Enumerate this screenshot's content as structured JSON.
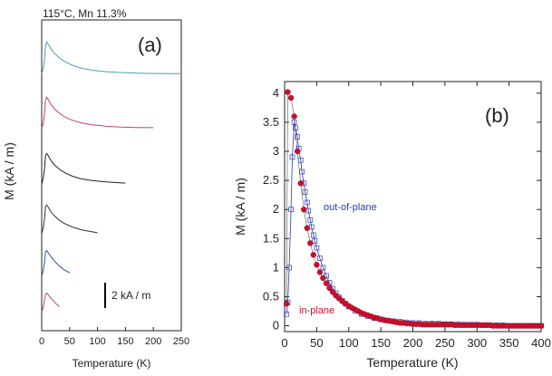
{
  "colors": {
    "axis": "#222222",
    "trace_a1": "#4aa0b5",
    "trace_a2": "#c0407a",
    "trace_a3": "#222222",
    "trace_a4": "#333333",
    "trace_a5": "#3355aa",
    "trace_a6": "#c0407a",
    "in_plane": "#c8102e",
    "out_of_plane": "#2d3bb0"
  },
  "chart_data": [
    {
      "panel": "a",
      "type": "line",
      "title": "115°C, Mn 11.3%",
      "panel_label": "(a)",
      "xlabel": "Temperature (K)",
      "ylabel": "M (kA / m)",
      "xlim": [
        0,
        250
      ],
      "x_ticks": [
        "0",
        "50",
        "100",
        "150",
        "200",
        "250"
      ],
      "scale_bar": {
        "label": "2 kA / m",
        "value": 2
      },
      "series": [
        {
          "x": [
            0,
            3,
            5,
            7,
            9,
            12,
            16,
            22,
            30,
            40,
            55,
            70,
            90,
            115,
            140,
            170,
            200,
            230,
            250
          ],
          "y": [
            0.0,
            0.3,
            0.75,
            1.4,
            1.6,
            1.48,
            1.28,
            1.06,
            0.85,
            0.65,
            0.44,
            0.31,
            0.2,
            0.13,
            0.09,
            0.06,
            0.04,
            0.03,
            0.03
          ]
        },
        {
          "x": [
            0,
            3,
            5,
            7,
            9,
            12,
            16,
            22,
            30,
            40,
            55,
            70,
            90,
            115,
            140,
            170,
            200
          ],
          "y": [
            0.0,
            0.3,
            0.75,
            1.4,
            1.55,
            1.43,
            1.22,
            1.0,
            0.8,
            0.6,
            0.41,
            0.29,
            0.19,
            0.12,
            0.08,
            0.06,
            0.05
          ]
        },
        {
          "x": [
            0,
            3,
            5,
            7,
            9,
            12,
            16,
            22,
            30,
            40,
            55,
            70,
            90,
            115,
            150
          ],
          "y": [
            0.0,
            0.3,
            0.75,
            1.4,
            1.5,
            1.38,
            1.18,
            0.96,
            0.76,
            0.57,
            0.38,
            0.26,
            0.17,
            0.1,
            0.04
          ]
        },
        {
          "x": [
            0,
            3,
            5,
            7,
            9,
            12,
            16,
            22,
            30,
            40,
            55,
            70,
            85,
            100
          ],
          "y": [
            0.0,
            0.3,
            0.75,
            1.35,
            1.42,
            1.3,
            1.1,
            0.9,
            0.7,
            0.52,
            0.33,
            0.2,
            0.12,
            0.05
          ]
        },
        {
          "x": [
            0,
            3,
            5,
            7,
            9,
            12,
            16,
            22,
            30,
            40,
            50
          ],
          "y": [
            0.0,
            0.3,
            0.7,
            1.2,
            1.27,
            1.15,
            0.98,
            0.78,
            0.55,
            0.32,
            0.18
          ]
        },
        {
          "x": [
            0,
            3,
            5,
            7,
            9,
            12,
            16,
            22,
            27,
            32
          ],
          "y": [
            0.0,
            0.3,
            0.6,
            0.9,
            0.96,
            0.87,
            0.72,
            0.55,
            0.4,
            0.3
          ]
        }
      ]
    },
    {
      "panel": "b",
      "type": "scatter",
      "panel_label": "(b)",
      "xlabel": "Temperature (K)",
      "ylabel": "M (kA / m)",
      "xlim": [
        0,
        400
      ],
      "ylim": [
        -0.1,
        4.2
      ],
      "x_ticks": [
        "0",
        "50",
        "100",
        "150",
        "200",
        "250",
        "300",
        "350",
        "400"
      ],
      "y_ticks": [
        "0",
        "0.5",
        "1",
        "1.5",
        "2",
        "2.5",
        "3",
        "3.5",
        "4"
      ],
      "series": [
        {
          "name": "in-plane",
          "x": [
            3,
            5,
            10,
            15,
            20,
            25,
            30,
            35,
            40,
            45,
            50,
            55,
            60,
            65,
            70,
            75,
            80,
            85,
            90,
            95,
            100,
            105,
            110,
            115,
            120,
            125,
            130,
            135,
            140,
            145,
            150,
            155,
            160,
            165,
            170,
            175,
            180,
            185,
            190,
            195,
            200,
            205,
            210,
            215,
            220,
            225,
            230,
            235,
            240,
            245,
            250,
            255,
            260,
            265,
            270,
            275,
            280,
            285,
            290,
            295,
            300,
            305,
            310,
            315,
            320,
            325,
            330,
            335,
            340,
            345,
            350,
            355,
            360,
            365,
            370,
            375,
            380,
            385,
            390,
            395,
            400
          ],
          "y": [
            0.38,
            4.02,
            3.92,
            3.6,
            3.0,
            2.45,
            2.0,
            1.68,
            1.42,
            1.22,
            1.05,
            0.92,
            0.82,
            0.73,
            0.65,
            0.58,
            0.52,
            0.47,
            0.42,
            0.38,
            0.34,
            0.31,
            0.28,
            0.25,
            0.22,
            0.2,
            0.18,
            0.16,
            0.14,
            0.13,
            0.11,
            0.1,
            0.09,
            0.08,
            0.07,
            0.06,
            0.05,
            0.05,
            0.04,
            0.04,
            0.03,
            0.03,
            0.03,
            0.02,
            0.02,
            0.02,
            0.02,
            0.02,
            0.02,
            0.02,
            0.02,
            0.02,
            0.02,
            0.01,
            0.01,
            0.01,
            0.01,
            0.01,
            0.01,
            0.01,
            0.01,
            0.01,
            0.01,
            0.01,
            0.01,
            0.0,
            0.0,
            0.0,
            0.0,
            0.0,
            0.0,
            0.0,
            0.0,
            0.0,
            0.0,
            0.0,
            0.0,
            0.0,
            0.0,
            0.0,
            0.0
          ]
        },
        {
          "name": "out-of-plane",
          "x": [
            3,
            5,
            7,
            10,
            12,
            15,
            17,
            20,
            22,
            25,
            27,
            30,
            32,
            35,
            37,
            40,
            42,
            45,
            47,
            50,
            55,
            60,
            65,
            70,
            75,
            80,
            85,
            90,
            95,
            100,
            110,
            120,
            130,
            140,
            150,
            160,
            170,
            180,
            190,
            200,
            210,
            220,
            230,
            240,
            250,
            260,
            270,
            280,
            290,
            300,
            310,
            320,
            330,
            340,
            350,
            360,
            370,
            380,
            390,
            400
          ],
          "y": [
            0.2,
            0.4,
            1.0,
            2.0,
            2.9,
            3.5,
            3.4,
            3.25,
            3.05,
            2.85,
            2.65,
            2.45,
            2.3,
            2.12,
            1.98,
            1.82,
            1.7,
            1.56,
            1.46,
            1.34,
            1.16,
            1.0,
            0.86,
            0.74,
            0.64,
            0.56,
            0.49,
            0.43,
            0.38,
            0.33,
            0.26,
            0.2,
            0.16,
            0.13,
            0.11,
            0.09,
            0.08,
            0.07,
            0.06,
            0.05,
            0.05,
            0.04,
            0.04,
            0.04,
            0.03,
            0.03,
            0.03,
            0.02,
            0.02,
            0.02,
            0.01,
            0.01,
            0.01,
            0.01,
            0.0,
            0.0,
            0.0,
            0.0,
            0.0,
            0.0
          ]
        }
      ]
    }
  ]
}
